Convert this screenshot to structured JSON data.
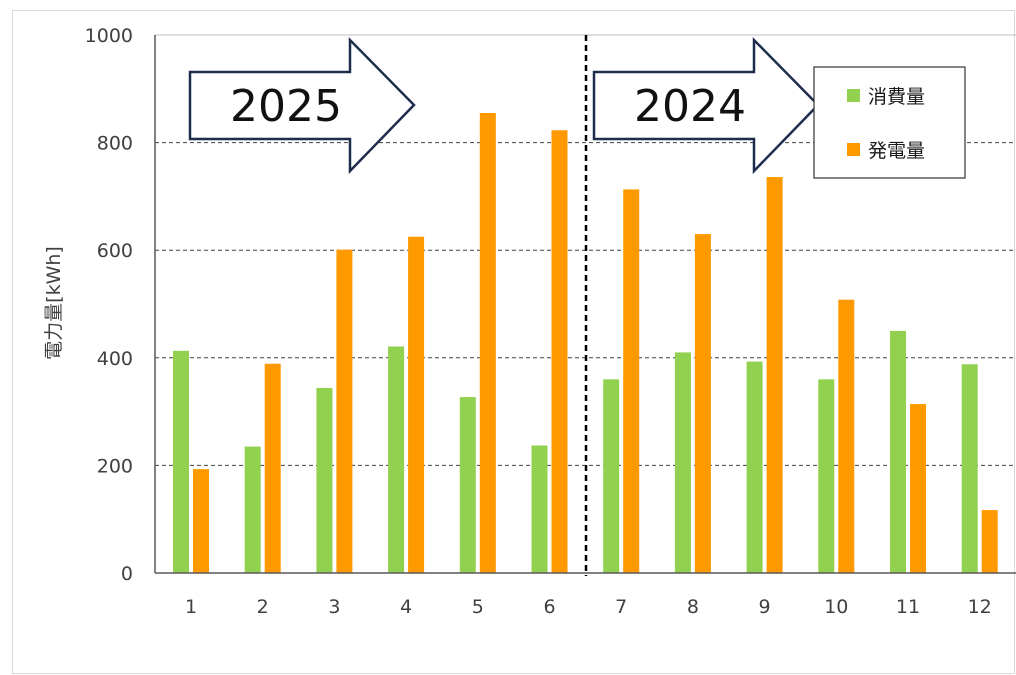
{
  "chart_data": {
    "type": "bar",
    "categories": [
      "1",
      "2",
      "3",
      "4",
      "5",
      "6",
      "7",
      "8",
      "9",
      "10",
      "11",
      "12"
    ],
    "series": [
      {
        "name": "消費量",
        "values": [
          413,
          235,
          344,
          421,
          327,
          237,
          360,
          410,
          393,
          360,
          450,
          388
        ]
      },
      {
        "name": "発電量",
        "values": [
          193,
          389,
          601,
          625,
          855,
          823,
          713,
          630,
          736,
          508,
          314,
          117
        ]
      }
    ],
    "ylabel": "電力量[kWh]",
    "ylim": [
      0,
      1000
    ],
    "yticks": [
      "0",
      "200",
      "400",
      "600",
      "800",
      "1000"
    ],
    "grid": "horizontal-dashed",
    "legend_position": "top-right",
    "annotations": [
      "2025",
      "2024"
    ],
    "colors": {
      "消費量": "#92d050",
      "発電量": "#ff9900"
    }
  }
}
